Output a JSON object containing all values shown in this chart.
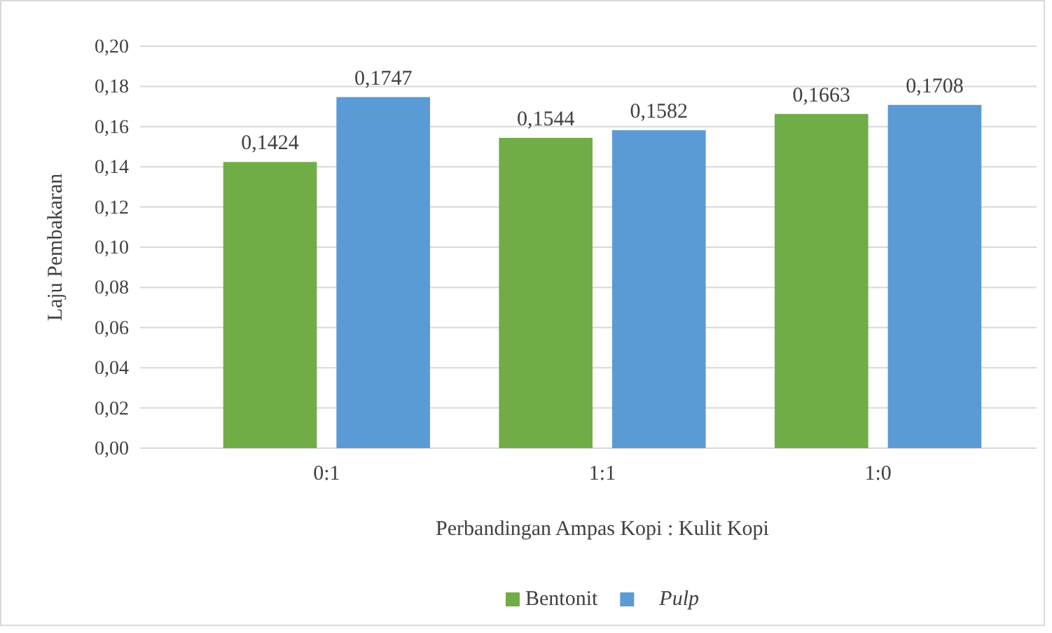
{
  "chart_data": {
    "type": "bar",
    "xlabel": "Perbandingan Ampas Kopi : Kulit Kopi",
    "ylabel": "Laju Pembakaran",
    "categories": [
      "0:1",
      "1:1",
      "1:0"
    ],
    "series": [
      {
        "name": "Bentonit",
        "color": "#70ad47",
        "values": [
          0.1424,
          0.1544,
          0.1663
        ],
        "value_labels": [
          "0,1424",
          "0,1544",
          "0,1663"
        ]
      },
      {
        "name": "Pulp",
        "color": "#5b9bd5",
        "values": [
          0.1747,
          0.1582,
          0.1708
        ],
        "value_labels": [
          "0,1747",
          "0,1582",
          "0,1708"
        ]
      }
    ],
    "ylim": [
      0,
      0.2
    ],
    "yticks": [
      {
        "value": 0,
        "label": "0,00"
      },
      {
        "value": 0.02,
        "label": "0,02"
      },
      {
        "value": 0.04,
        "label": "0,04"
      },
      {
        "value": 0.06,
        "label": "0,06"
      },
      {
        "value": 0.08,
        "label": "0,08"
      },
      {
        "value": 0.1,
        "label": "0,10"
      },
      {
        "value": 0.12,
        "label": "0,12"
      },
      {
        "value": 0.14,
        "label": "0,14"
      },
      {
        "value": 0.16,
        "label": "0,16"
      },
      {
        "value": 0.18,
        "label": "0,18"
      },
      {
        "value": 0.2,
        "label": "0,20"
      }
    ],
    "grid": "y",
    "legend": "bottom"
  }
}
